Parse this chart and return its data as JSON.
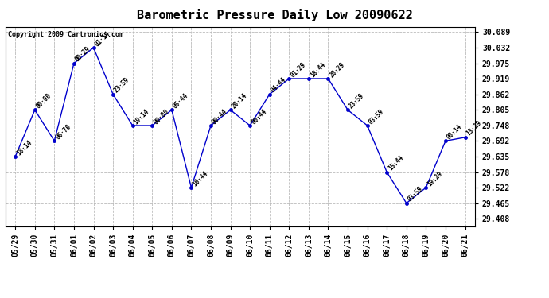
{
  "title": "Barometric Pressure Daily Low 20090622",
  "copyright": "Copyright 2009 Cartronics.com",
  "x_labels": [
    "05/29",
    "05/30",
    "05/31",
    "06/01",
    "06/02",
    "06/03",
    "06/04",
    "06/05",
    "06/06",
    "06/07",
    "06/08",
    "06/09",
    "06/10",
    "06/11",
    "06/12",
    "06/13",
    "06/14",
    "06/15",
    "06/16",
    "06/17",
    "06/18",
    "06/19",
    "06/20",
    "06/21"
  ],
  "y_ticks": [
    29.408,
    29.465,
    29.522,
    29.578,
    29.635,
    29.692,
    29.748,
    29.805,
    29.862,
    29.919,
    29.975,
    30.032,
    30.089
  ],
  "y_tick_labels": [
    "29.408",
    "29.465",
    "29.522",
    "29.578",
    "29.635",
    "29.692",
    "29.748",
    "29.805",
    "29.862",
    "29.919",
    "29.975",
    "30.032",
    "30.089"
  ],
  "values": [
    29.635,
    29.805,
    29.692,
    29.975,
    30.032,
    29.862,
    29.748,
    29.748,
    29.805,
    29.522,
    29.748,
    29.805,
    29.748,
    29.862,
    29.919,
    29.919,
    29.919,
    29.805,
    29.748,
    29.578,
    29.465,
    29.522,
    29.692,
    29.705
  ],
  "annotations": [
    "18:14",
    "00:00",
    "06:70",
    "00:29",
    "01:14",
    "23:59",
    "19:14",
    "00:00",
    "05:44",
    "16:44",
    "00:44",
    "20:14",
    "00:44",
    "04:44",
    "01:29",
    "18:44",
    "20:29",
    "23:59",
    "03:59",
    "15:44",
    "03:59",
    "19:29",
    "00:14",
    "13:29"
  ],
  "line_color": "#0000cc",
  "marker_color": "#0000cc",
  "bg_color": "#ffffff",
  "grid_color": "#bbbbbb",
  "title_fontsize": 11,
  "annotation_fontsize": 5.5,
  "copyright_fontsize": 6,
  "tick_fontsize": 7,
  "ylim": [
    29.38,
    30.108
  ]
}
